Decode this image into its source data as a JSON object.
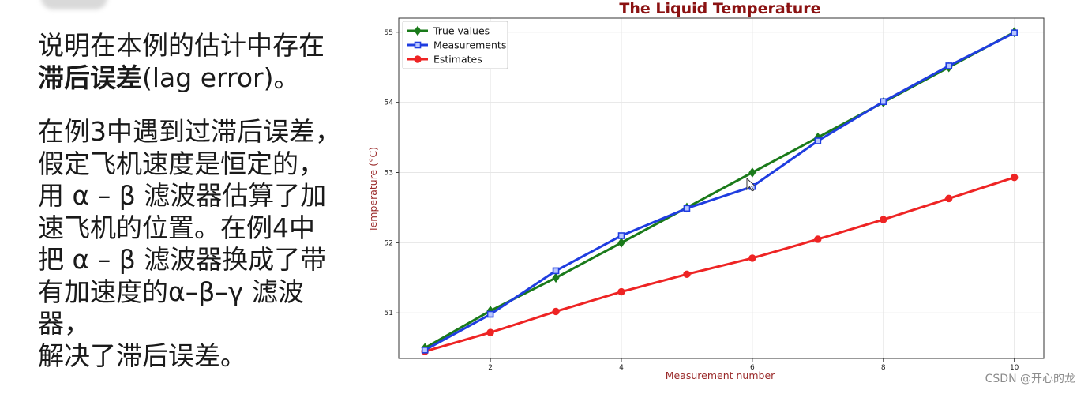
{
  "text_panel": {
    "para1_line1": "说明在本例的估计中存在",
    "para1_bold": "滞后误差",
    "para1_tail": "(lag error)。",
    "para2_lines": [
      "在例3中遇到过滞后误差，",
      "假定飞机速度是恒定的，",
      "用 α – β 滤波器估算了加",
      "速飞机的位置。在例4中",
      "把 α – β  滤波器换成了带",
      "有加速度的α–β–γ 滤波器，",
      "解决了滞后误差。"
    ]
  },
  "watermark": "CSDN @开心的龙",
  "chart_data": {
    "type": "line",
    "title": "The Liquid  Temperature",
    "xlabel": "Measurement number",
    "ylabel": "Temperature (°C)",
    "x": [
      1,
      2,
      3,
      4,
      5,
      6,
      7,
      8,
      9,
      10
    ],
    "xlim": [
      0.6,
      10.45
    ],
    "ylim": [
      50.35,
      55.2
    ],
    "xticks": [
      2,
      4,
      6,
      8,
      10
    ],
    "yticks": [
      51,
      52,
      53,
      54,
      55
    ],
    "grid": true,
    "legend_position": "top-left",
    "series": [
      {
        "name": "True values",
        "color": "#1a7a1a",
        "marker": "diamond",
        "values": [
          50.5,
          51.03,
          51.5,
          52.0,
          52.5,
          53.0,
          53.5,
          54.0,
          54.5,
          55.0
        ]
      },
      {
        "name": "Measurements",
        "color": "#1f3de0",
        "marker": "square",
        "values": [
          50.47,
          50.98,
          51.6,
          52.1,
          52.49,
          52.8,
          53.45,
          54.01,
          54.52,
          54.99
        ]
      },
      {
        "name": "Estimates",
        "color": "#ee2424",
        "marker": "circle",
        "values": [
          50.45,
          50.72,
          51.02,
          51.3,
          51.55,
          51.78,
          52.05,
          52.33,
          52.63,
          52.93
        ]
      }
    ]
  }
}
